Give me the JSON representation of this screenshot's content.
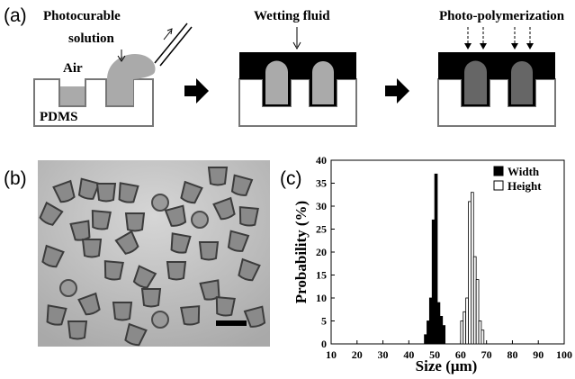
{
  "panels": {
    "a": {
      "label": "(a)",
      "step1_title_line1": "Photocurable",
      "step1_title_line2": "solution",
      "air": "Air",
      "pdms": "PDMS",
      "step2_title": "Wetting fluid",
      "step3_title": "Photo-polymerization"
    },
    "b": {
      "label": "(b)"
    },
    "c": {
      "label": "(c)"
    }
  },
  "chart_data": {
    "type": "histogram",
    "xlabel": "Size (μm)",
    "ylabel": "Probability (%)",
    "xlim": [
      10,
      100
    ],
    "xticks": [
      10,
      20,
      30,
      40,
      50,
      60,
      70,
      80,
      90,
      100
    ],
    "ylim": [
      0,
      40
    ],
    "yticks": [
      0,
      5,
      10,
      15,
      20,
      25,
      30,
      35,
      40
    ],
    "legend": "upper right",
    "series": [
      {
        "name": "Width",
        "color": "#000000",
        "bins": [
          46,
          47,
          48,
          49,
          50,
          51,
          52,
          53,
          54
        ],
        "values": [
          2,
          5,
          10,
          27,
          37,
          9,
          6,
          4
        ]
      },
      {
        "name": "Height",
        "color": "#ffffff",
        "bins": [
          60,
          61,
          62,
          63,
          64,
          65,
          66,
          67,
          68,
          69
        ],
        "values": [
          5,
          7,
          10,
          31,
          33,
          19,
          14,
          5,
          3
        ]
      }
    ]
  }
}
